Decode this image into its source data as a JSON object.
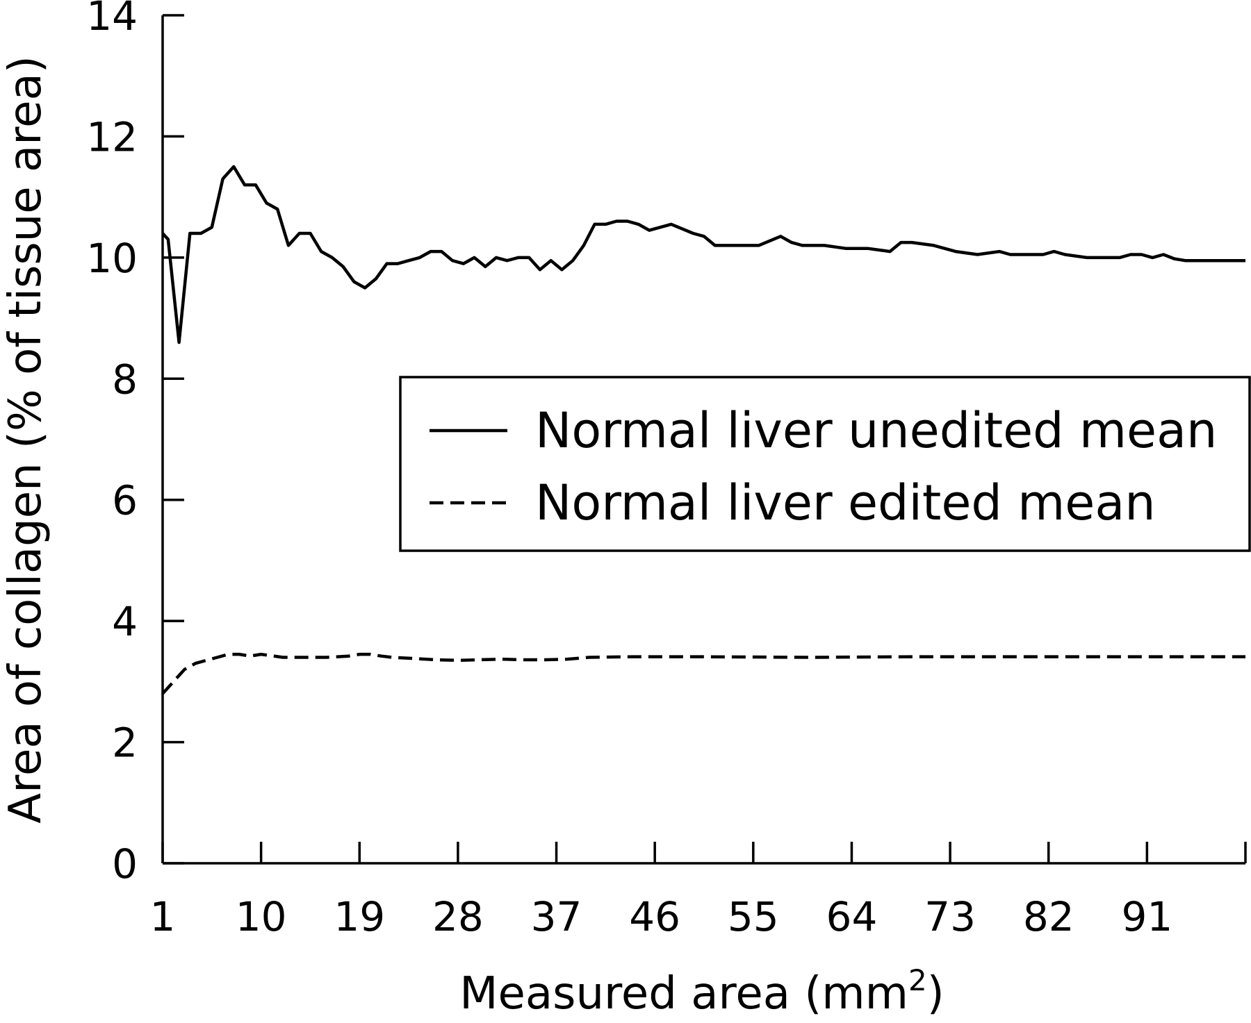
{
  "chart_data": {
    "type": "line",
    "xlabel": "Measured area (mm",
    "xlabel_superscript": "2",
    "xlabel_close": ")",
    "ylabel": "Area of collagen (% of tissue area)",
    "xlim": [
      1,
      100
    ],
    "ylim": [
      0,
      14
    ],
    "x_ticks": [
      1,
      10,
      19,
      28,
      37,
      46,
      55,
      64,
      73,
      82,
      91
    ],
    "y_ticks": [
      0,
      2,
      4,
      6,
      8,
      10,
      12,
      14
    ],
    "grid": false,
    "legend_position": "center-right",
    "series": [
      {
        "name": "Normal liver unedited mean",
        "style": "solid",
        "color": "#000000",
        "x": [
          1,
          1.5,
          2.5,
          3.5,
          4.5,
          5.5,
          6.5,
          7.5,
          8.5,
          9.5,
          10.5,
          11.5,
          12.5,
          13.5,
          14.5,
          15.5,
          16.5,
          17.5,
          18.5,
          19.5,
          20.5,
          21.5,
          22.5,
          23.5,
          24.5,
          25.5,
          26.5,
          27.5,
          28.5,
          29.5,
          30.5,
          31.5,
          32.5,
          33.5,
          34.5,
          35.5,
          36.5,
          37.5,
          38.5,
          39.5,
          40.5,
          41.5,
          42.5,
          43.5,
          44.5,
          45.5,
          47.5,
          49.5,
          50.5,
          51.5,
          53.5,
          55.5,
          57.5,
          58.5,
          59.5,
          61.5,
          63.5,
          65.5,
          67.5,
          68.5,
          69.5,
          71.5,
          73.5,
          75.5,
          77.5,
          78.5,
          79.5,
          81.5,
          82.5,
          83.5,
          85.5,
          87.5,
          88.5,
          89.5,
          90.5,
          91.5,
          92.5,
          93.5,
          94.5,
          95.5,
          97.5,
          99.5,
          100
        ],
        "values": [
          10.4,
          10.3,
          8.6,
          10.4,
          10.4,
          10.5,
          11.3,
          11.5,
          11.2,
          11.2,
          10.9,
          10.8,
          10.2,
          10.4,
          10.4,
          10.1,
          10.0,
          9.85,
          9.6,
          9.5,
          9.65,
          9.9,
          9.9,
          9.95,
          10.0,
          10.1,
          10.1,
          9.95,
          9.9,
          10.0,
          9.85,
          10.0,
          9.95,
          10.0,
          10.0,
          9.8,
          9.95,
          9.8,
          9.95,
          10.2,
          10.55,
          10.55,
          10.6,
          10.6,
          10.55,
          10.45,
          10.55,
          10.4,
          10.35,
          10.2,
          10.2,
          10.2,
          10.35,
          10.25,
          10.2,
          10.2,
          10.15,
          10.15,
          10.1,
          10.25,
          10.25,
          10.2,
          10.1,
          10.05,
          10.1,
          10.05,
          10.05,
          10.05,
          10.1,
          10.05,
          10.0,
          10.0,
          10.0,
          10.05,
          10.05,
          10.0,
          10.05,
          9.98,
          9.95,
          9.95,
          9.95,
          9.95,
          9.95
        ]
      },
      {
        "name": "Normal liver edited mean",
        "style": "dashed",
        "color": "#000000",
        "x": [
          1,
          2,
          3,
          4,
          5,
          6,
          7,
          8,
          9,
          10,
          12,
          14,
          16,
          18,
          19,
          20,
          21,
          22,
          24,
          26,
          28,
          30,
          32,
          34,
          36,
          38,
          40,
          44,
          50,
          60,
          70,
          80,
          90,
          100
        ],
        "values": [
          2.8,
          3.0,
          3.2,
          3.3,
          3.35,
          3.4,
          3.45,
          3.45,
          3.42,
          3.45,
          3.4,
          3.4,
          3.4,
          3.42,
          3.45,
          3.45,
          3.42,
          3.4,
          3.38,
          3.36,
          3.35,
          3.36,
          3.37,
          3.36,
          3.36,
          3.37,
          3.4,
          3.41,
          3.41,
          3.4,
          3.41,
          3.41,
          3.41,
          3.41
        ]
      }
    ]
  }
}
